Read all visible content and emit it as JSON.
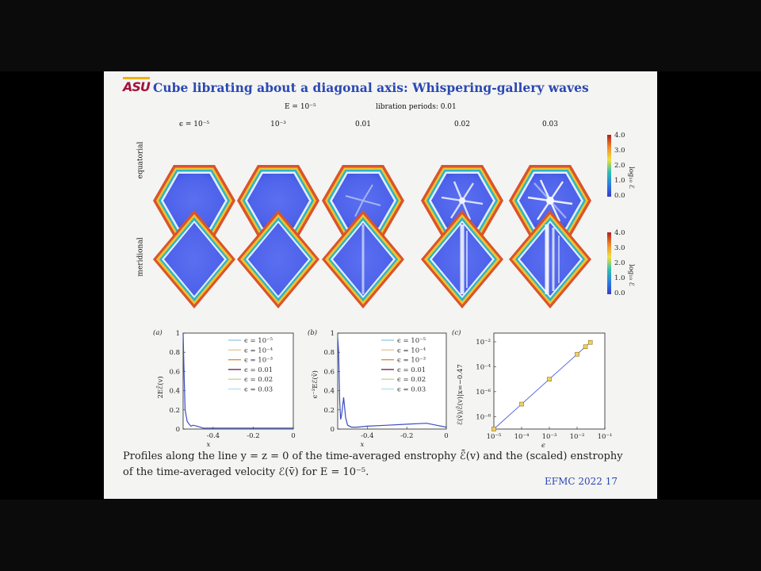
{
  "slide": {
    "logo": "ASU",
    "title": "Cube librating about a diagonal axis: Whispering-gallery waves",
    "subtitle_E": "E = 10⁻⁵",
    "subtitle_periods": "libration periods: 0.01",
    "columns": [
      "ϵ = 10⁻⁵",
      "10⁻³",
      "0.01",
      "0.02",
      "0.03"
    ],
    "rows": [
      "equatorial",
      "meridional"
    ],
    "colorbar": {
      "label": "log₁₀ ℰ",
      "ticks": [
        "4.0",
        "3.0",
        "2.0",
        "1.0",
        "0.0"
      ]
    },
    "caption_line1": "Profiles along the line y = z = 0 of the time-averaged enstrophy ℰ̄(v) and the (scaled) enstrophy",
    "caption_line2": "of the time-averaged velocity ℰ(v̄) for E = 10⁻⁵.",
    "footer": "EFMC 2022   17"
  },
  "chart_data": [
    {
      "panel": "(a)",
      "type": "line",
      "ylabel": "2Eℰ̄(v)",
      "xlabel": "x",
      "xlim": [
        -0.55,
        0
      ],
      "ylim": [
        0,
        1
      ],
      "xticks": [
        "-0.4",
        "-0.2",
        "0"
      ],
      "yticks": [
        "0",
        "0.2",
        "0.4",
        "0.6",
        "0.8",
        "1"
      ],
      "legend": [
        "ϵ = 10⁻⁵",
        "ϵ = 10⁻⁴",
        "ϵ = 10⁻³",
        "ϵ = 0.01",
        "ϵ = 0.02",
        "ϵ = 0.03"
      ],
      "colors": [
        "#9ecae8",
        "#e8c9a0",
        "#e28b3a",
        "#7a2a5a",
        "#c7d69a",
        "#b8e0f0"
      ],
      "series": [
        {
          "name": "ϵ = 10⁻⁵",
          "x": [
            -0.55,
            -0.545,
            -0.54,
            -0.53,
            -0.52,
            -0.51,
            -0.5,
            -0.48,
            -0.45,
            -0.4,
            -0.3,
            -0.2,
            -0.1,
            0
          ],
          "y": [
            1.0,
            0.55,
            0.2,
            0.08,
            0.05,
            0.03,
            0.04,
            0.03,
            0.01,
            0.01,
            0.01,
            0.01,
            0.01,
            0.01
          ]
        }
      ]
    },
    {
      "panel": "(b)",
      "type": "line",
      "ylabel": "ϵ⁻²Eℰ(v̄)",
      "xlabel": "x",
      "xlim": [
        -0.55,
        0
      ],
      "ylim": [
        0,
        1
      ],
      "xticks": [
        "-0.4",
        "-0.2",
        "0"
      ],
      "yticks": [
        "0",
        "0.2",
        "0.4",
        "0.6",
        "0.8",
        "1"
      ],
      "legend": [
        "ϵ = 10⁻⁵",
        "ϵ = 10⁻⁴",
        "ϵ = 10⁻³",
        "ϵ = 0.01",
        "ϵ = 0.02",
        "ϵ = 0.03"
      ],
      "colors": [
        "#9ecae8",
        "#e8c9a0",
        "#e28b3a",
        "#7a2a5a",
        "#c7d69a",
        "#b8e0f0"
      ],
      "series": [
        {
          "name": "ϵ = 10⁻⁵",
          "x": [
            -0.55,
            -0.545,
            -0.54,
            -0.535,
            -0.53,
            -0.52,
            -0.51,
            -0.5,
            -0.48,
            -0.45,
            -0.4,
            -0.3,
            -0.2,
            -0.1,
            -0.05,
            0
          ],
          "y": [
            0.95,
            0.8,
            0.3,
            0.1,
            0.15,
            0.33,
            0.12,
            0.04,
            0.02,
            0.02,
            0.03,
            0.04,
            0.05,
            0.06,
            0.04,
            0.02
          ]
        }
      ]
    },
    {
      "panel": "(c)",
      "type": "scatter",
      "ylabel": "ℰ(v̄)/ℰ̄(v)|x=−0.47",
      "xlabel": "ϵ",
      "xscale": "log",
      "yscale": "log",
      "xlim": [
        1e-05,
        0.1
      ],
      "ylim": [
        1e-09,
        0.05
      ],
      "xticks": [
        "10⁻⁵",
        "10⁻⁴",
        "10⁻³",
        "10⁻²",
        "10⁻¹"
      ],
      "yticks": [
        "10⁻²",
        "10⁻⁴",
        "10⁻⁶",
        "10⁻⁸"
      ],
      "x": [
        1e-05,
        0.0001,
        0.001,
        0.01,
        0.02,
        0.03
      ],
      "y": [
        1e-09,
        1e-07,
        1e-05,
        0.001,
        0.004,
        0.009
      ]
    }
  ]
}
